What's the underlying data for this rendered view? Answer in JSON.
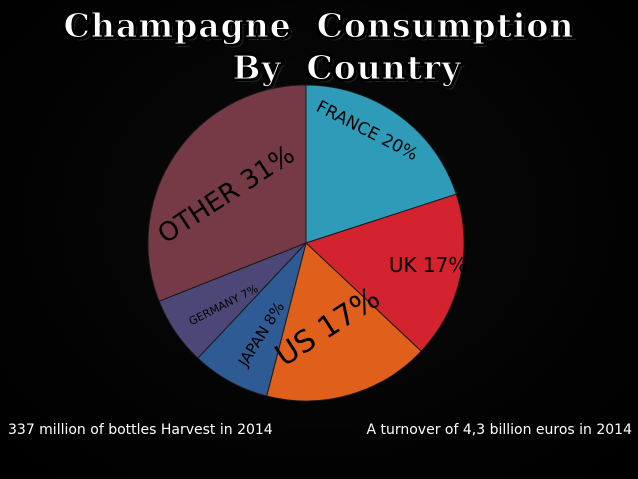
{
  "title": {
    "line1": "Champagne  Consumption",
    "line2": "By  Country"
  },
  "captions": {
    "left": "337 million of bottles Harvest in 2014",
    "right": "A turnover of 4,3 billion euros in 2014"
  },
  "chart_data": {
    "type": "pie",
    "title": "Champagne Consumption By Country",
    "slices": [
      {
        "label": "FRANCE 20%",
        "name": "FRANCE",
        "value": 20,
        "color": "#2e9bb8"
      },
      {
        "label": "UK 17%",
        "name": "UK",
        "value": 17,
        "color": "#d2232e"
      },
      {
        "label": "US 17%",
        "name": "US",
        "value": 17,
        "color": "#e0601b"
      },
      {
        "label": "JAPAN 8%",
        "name": "JAPAN",
        "value": 8,
        "color": "#2f5b94"
      },
      {
        "label": "GERMANY 7%",
        "name": "GERMANY",
        "value": 7,
        "color": "#4c4777"
      },
      {
        "label": "OTHER 31%",
        "name": "OTHER",
        "value": 31,
        "color": "#763a46"
      }
    ]
  }
}
